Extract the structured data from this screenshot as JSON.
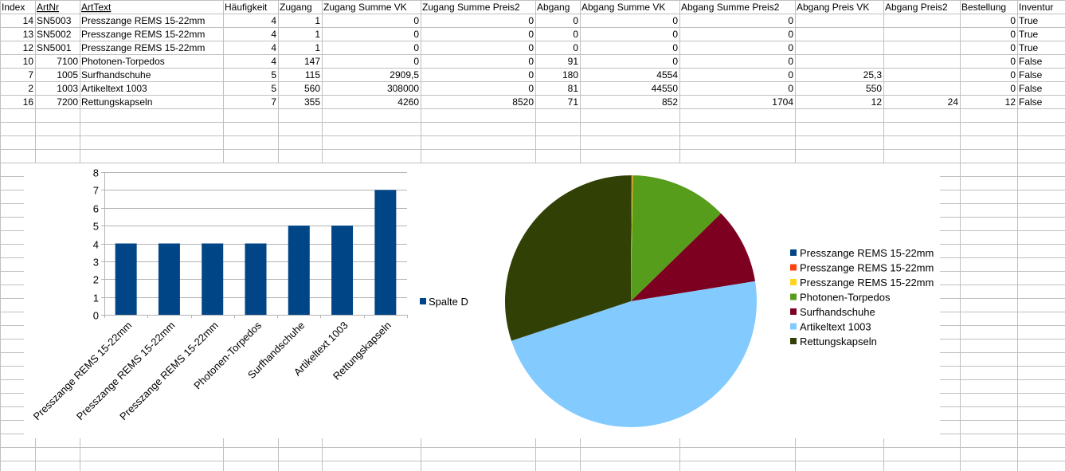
{
  "sheet": {
    "headers": [
      "Index",
      "ArtNr",
      "ArtText",
      "Häufigkeit",
      "Zugang",
      "Zugang Summe VK",
      "Zugang Summe Preis2",
      "Abgang",
      "Abgang Summe VK",
      "Abgang Summe Preis2",
      "Abgang Preis VK",
      "Abgang Preis2",
      "Bestellung",
      "Inventur"
    ],
    "rows": [
      [
        "14",
        "SN5003",
        "Presszange REMS 15-22mm",
        "4",
        "1",
        "0",
        "0",
        "0",
        "0",
        "0",
        "",
        "",
        "0",
        "True"
      ],
      [
        "13",
        "SN5002",
        "Presszange REMS 15-22mm",
        "4",
        "1",
        "0",
        "0",
        "0",
        "0",
        "0",
        "",
        "",
        "0",
        "True"
      ],
      [
        "12",
        "SN5001",
        "Presszange REMS 15-22mm",
        "4",
        "1",
        "0",
        "0",
        "0",
        "0",
        "0",
        "",
        "",
        "0",
        "True"
      ],
      [
        "10",
        "7100",
        "Photonen-Torpedos",
        "4",
        "147",
        "0",
        "0",
        "91",
        "0",
        "0",
        "",
        "",
        "0",
        "False"
      ],
      [
        "7",
        "1005",
        "Surfhandschuhe",
        "5",
        "115",
        "2909,5",
        "0",
        "180",
        "4554",
        "0",
        "25,3",
        "",
        "0",
        "False"
      ],
      [
        "2",
        "1003",
        "Artikeltext 1003",
        "5",
        "560",
        "308000",
        "0",
        "81",
        "44550",
        "0",
        "550",
        "",
        "0",
        "False"
      ],
      [
        "16",
        "7200",
        "Rettungskapseln",
        "7",
        "355",
        "4260",
        "8520",
        "71",
        "852",
        "1704",
        "12",
        "24",
        "12",
        "False"
      ]
    ]
  },
  "chart_data": [
    {
      "type": "bar",
      "categories": [
        "Presszange REMS 15-22mm",
        "Presszange REMS 15-22mm",
        "Presszange REMS 15-22mm",
        "Photonen-Torpedos",
        "Surfhandschuhe",
        "Artikeltext 1003",
        "Rettungskapseln"
      ],
      "series": [
        {
          "name": "Spalte D",
          "values": [
            4,
            4,
            4,
            4,
            5,
            5,
            7
          ],
          "color": "#004586"
        }
      ],
      "ylim": [
        0,
        8
      ],
      "yticks": [
        "0",
        "1",
        "2",
        "3",
        "4",
        "5",
        "6",
        "7",
        "8"
      ],
      "grid": true,
      "legend": "right"
    },
    {
      "type": "pie",
      "labels": [
        "Presszange REMS 15-22mm",
        "Presszange REMS 15-22mm",
        "Presszange REMS 15-22mm",
        "Photonen-Torpedos",
        "Surfhandschuhe",
        "Artikeltext 1003",
        "Rettungskapseln"
      ],
      "values": [
        1,
        1,
        1,
        147,
        115,
        560,
        355
      ],
      "colors": [
        "#004586",
        "#ff420e",
        "#ffd320",
        "#579d1c",
        "#7e0021",
        "#83caff",
        "#314004"
      ],
      "legend": "right"
    }
  ]
}
